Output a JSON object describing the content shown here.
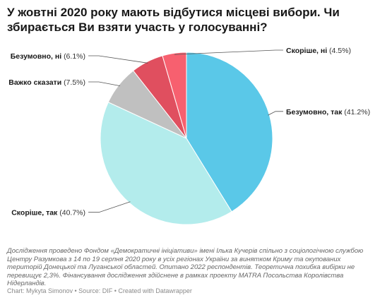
{
  "title": "У жовтні 2020 року мають відбутися місцеві вибори. Чи збирається Ви взяти участь у голосуванні?",
  "notes": "Дослідження проведено Фондом «Демократичні ініціативи» імені Ілька Кучерів спільно з соціологічною службою Центру Разумкова з 14 по 19 серпня 2020 року в усіх регіонах України за винятком Криму та окупованих територій Донецької та Луганської областей. Опитано 2022 респондентів. Теоретична похибка вибірки не перевищує 2,3%. Фінансування дослідження здійснене в рамках проекту MATRA Посольства Королівства Нідерландів.",
  "credit": "Chart: Mykyta Simonov • Source: DIF • Created with Datawrapper",
  "chart_data": {
    "type": "pie",
    "title": "У жовтні 2020 року мають відбутися місцеві вибори. Чи збирається Ви взяти участь у голосуванні?",
    "slices": [
      {
        "label": "Безумовно, так",
        "value": 41.2,
        "value_label": "(41.2%)",
        "color": "#5ac8e8"
      },
      {
        "label": "Скоріше, так",
        "value": 40.7,
        "value_label": "(40.7%)",
        "color": "#b3ecec"
      },
      {
        "label": "Важко сказати",
        "value": 7.5,
        "value_label": "(7.5%)",
        "color": "#c0c0c0"
      },
      {
        "label": "Безумовно, ні",
        "value": 6.1,
        "value_label": "(6.1%)",
        "color": "#e04f5f"
      },
      {
        "label": "Скоріше, ні",
        "value": 4.5,
        "value_label": "(4.5%)",
        "color": "#f7606f"
      }
    ],
    "start": "top",
    "direction": "clockwise"
  }
}
